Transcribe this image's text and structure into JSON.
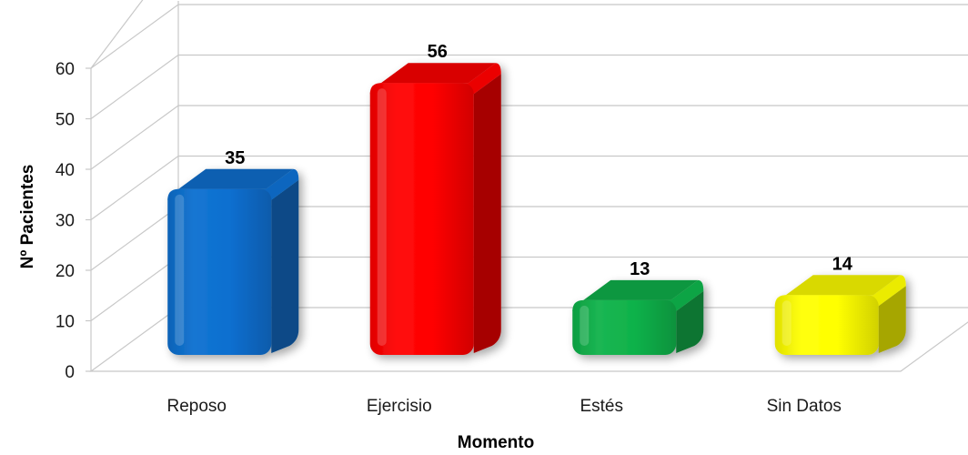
{
  "chart_data": {
    "type": "bar",
    "title": "",
    "xlabel": "Momento",
    "ylabel": "Nº Pacientes",
    "categories": [
      "Reposo",
      "Ejercisio",
      "Estés",
      "Sin Datos"
    ],
    "values": [
      35,
      56,
      13,
      14
    ],
    "value_labels": [
      "35",
      "56",
      "13",
      "14"
    ],
    "ylim": [
      0,
      60
    ],
    "yticks": [
      "0",
      "10",
      "20",
      "30",
      "40",
      "50",
      "60"
    ],
    "grid": true,
    "legend": "none",
    "colors": [
      "#0a6fd0",
      "#ff0000",
      "#0fb24a",
      "#ffff00"
    ]
  }
}
